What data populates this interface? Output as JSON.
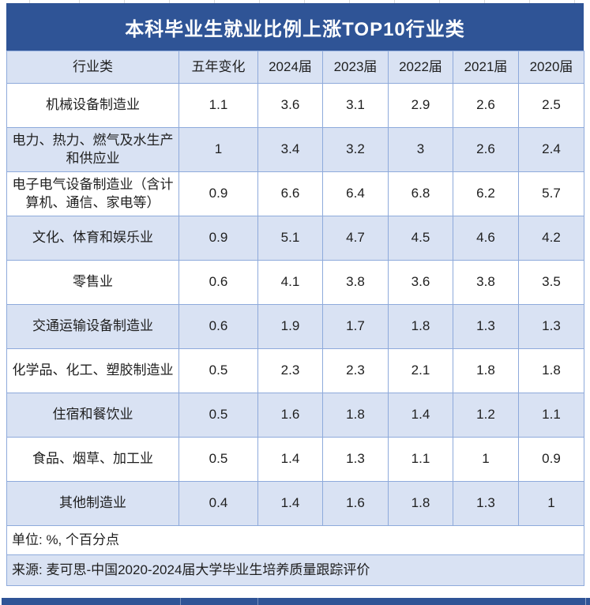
{
  "chart_data": {
    "type": "table",
    "title": "本科毕业生就业比例上涨TOP10行业类",
    "columns": [
      "行业类",
      "五年变化",
      "2024届",
      "2023届",
      "2022届",
      "2021届",
      "2020届"
    ],
    "rows": [
      {
        "industry": "机械设备制造业",
        "five_year_change": 1.1,
        "values": [
          3.6,
          3.1,
          2.9,
          2.6,
          2.5
        ]
      },
      {
        "industry": "电力、热力、燃气及水生产和供应业",
        "five_year_change": 1,
        "values": [
          3.4,
          3.2,
          3,
          2.6,
          2.4
        ]
      },
      {
        "industry": "电子电气设备制造业（含计算机、通信、家电等）",
        "five_year_change": 0.9,
        "values": [
          6.6,
          6.4,
          6.8,
          6.2,
          5.7
        ]
      },
      {
        "industry": "文化、体育和娱乐业",
        "five_year_change": 0.9,
        "values": [
          5.1,
          4.7,
          4.5,
          4.6,
          4.2
        ]
      },
      {
        "industry": "零售业",
        "five_year_change": 0.6,
        "values": [
          4.1,
          3.8,
          3.6,
          3.8,
          3.5
        ]
      },
      {
        "industry": "交通运输设备制造业",
        "five_year_change": 0.6,
        "values": [
          1.9,
          1.7,
          1.8,
          1.3,
          1.3
        ]
      },
      {
        "industry": "化学品、化工、塑胶制造业",
        "five_year_change": 0.5,
        "values": [
          2.3,
          2.3,
          2.1,
          1.8,
          1.8
        ]
      },
      {
        "industry": "住宿和餐饮业",
        "five_year_change": 0.5,
        "values": [
          1.6,
          1.8,
          1.4,
          1.2,
          1.1
        ]
      },
      {
        "industry": "食品、烟草、加工业",
        "five_year_change": 0.5,
        "values": [
          1.4,
          1.3,
          1.1,
          1,
          0.9
        ]
      },
      {
        "industry": "其他制造业",
        "five_year_change": 0.4,
        "values": [
          1.4,
          1.6,
          1.8,
          1.3,
          1
        ]
      }
    ],
    "unit_note": "单位: %, 个百分点",
    "source": "来源: 麦可思-中国2020-2024届大学毕业生培养质量跟踪评价",
    "layout": {
      "banding": "alternating white / light blue rows, header light blue",
      "legend_position": "none",
      "grid": "on"
    },
    "colors": {
      "title_bar": "#2F5496",
      "band_blue": "#D9E2F3",
      "border_blue": "#8EAADB",
      "title_text": "#FFFFFF",
      "body_text": "#1F1F1F"
    }
  }
}
